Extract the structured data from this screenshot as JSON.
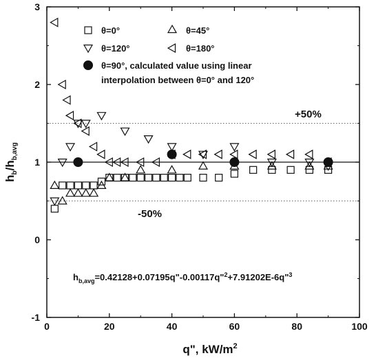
{
  "chart_data": {
    "type": "scatter",
    "xlabel": "q\", kW/m",
    "xlabel_sup": "2",
    "ylabel_main": "h",
    "ylabel_sub1": "b",
    "ylabel_mid": "/h",
    "ylabel_sub2": "b,avg",
    "xlim": [
      0,
      100
    ],
    "ylim": [
      -1,
      3
    ],
    "xticks": [
      "0",
      "20",
      "40",
      "60",
      "80",
      "100"
    ],
    "yticks": [
      "-1",
      "0",
      "1",
      "2",
      "3"
    ],
    "reference_lines": [
      {
        "y": 1.0,
        "style": "solid"
      },
      {
        "y": 1.5,
        "style": "dotted",
        "label": "+50%"
      },
      {
        "y": 0.5,
        "style": "dotted",
        "label": "-50%"
      }
    ],
    "legend_position": "top",
    "series": [
      {
        "name": "θ=0°",
        "marker": "square",
        "points": [
          [
            2.5,
            0.4
          ],
          [
            5,
            0.7
          ],
          [
            7.5,
            0.7
          ],
          [
            10,
            0.7
          ],
          [
            12.5,
            0.7
          ],
          [
            15,
            0.7
          ],
          [
            17.5,
            0.75
          ],
          [
            20,
            0.8
          ],
          [
            22.5,
            0.8
          ],
          [
            25,
            0.8
          ],
          [
            27.5,
            0.8
          ],
          [
            30,
            0.8
          ],
          [
            32.5,
            0.8
          ],
          [
            35,
            0.8
          ],
          [
            37.5,
            0.8
          ],
          [
            40,
            0.8
          ],
          [
            42.5,
            0.8
          ],
          [
            45,
            0.8
          ],
          [
            50,
            0.8
          ],
          [
            55,
            0.8
          ],
          [
            60,
            0.85
          ],
          [
            66,
            0.9
          ],
          [
            72,
            0.9
          ],
          [
            78,
            0.9
          ],
          [
            84,
            0.9
          ],
          [
            90,
            0.9
          ]
        ]
      },
      {
        "name": "θ=45°",
        "marker": "triangle-up",
        "points": [
          [
            2.5,
            0.7
          ],
          [
            5,
            0.5
          ],
          [
            7.5,
            0.6
          ],
          [
            10,
            0.6
          ],
          [
            12.5,
            0.6
          ],
          [
            15,
            0.6
          ],
          [
            17.5,
            0.7
          ],
          [
            20,
            0.8
          ],
          [
            25,
            0.8
          ],
          [
            30,
            0.9
          ],
          [
            40,
            0.9
          ],
          [
            50,
            0.95
          ],
          [
            60,
            0.95
          ],
          [
            72,
            0.95
          ],
          [
            84,
            0.95
          ],
          [
            90,
            0.95
          ]
        ]
      },
      {
        "name": "θ=120°",
        "marker": "triangle-down",
        "points": [
          [
            2.5,
            0.5
          ],
          [
            5,
            1.0
          ],
          [
            7.5,
            1.2
          ],
          [
            10,
            1.5
          ],
          [
            12.5,
            1.5
          ],
          [
            17.5,
            1.6
          ],
          [
            25,
            1.4
          ],
          [
            32.5,
            1.3
          ],
          [
            40,
            1.2
          ],
          [
            50,
            1.1
          ],
          [
            60,
            1.2
          ],
          [
            72,
            1.0
          ],
          [
            84,
            1.0
          ],
          [
            90,
            0.95
          ]
        ]
      },
      {
        "name": "θ=180°",
        "marker": "triangle-left",
        "points": [
          [
            2.5,
            2.8
          ],
          [
            5,
            2.0
          ],
          [
            6.5,
            1.8
          ],
          [
            7.5,
            1.6
          ],
          [
            10,
            1.5
          ],
          [
            12.5,
            1.4
          ],
          [
            15,
            1.2
          ],
          [
            17.5,
            1.1
          ],
          [
            20,
            1.0
          ],
          [
            22.5,
            1.0
          ],
          [
            25,
            1.0
          ],
          [
            30,
            1.0
          ],
          [
            35,
            1.0
          ],
          [
            40,
            1.1
          ],
          [
            45,
            1.1
          ],
          [
            50,
            1.1
          ],
          [
            55,
            1.1
          ],
          [
            60,
            1.1
          ],
          [
            66,
            1.1
          ],
          [
            72,
            1.1
          ],
          [
            78,
            1.1
          ],
          [
            84,
            1.1
          ],
          [
            90,
            1.0
          ]
        ]
      },
      {
        "name": "θ=90°, calculated value using linear interpolation between θ=0° and 120°",
        "marker": "circle-filled",
        "points": [
          [
            10,
            1.0
          ],
          [
            40,
            1.1
          ],
          [
            60,
            1.0
          ],
          [
            90,
            1.0
          ]
        ]
      }
    ]
  },
  "legend": {
    "l0": "θ=0°",
    "l45": "θ=45°",
    "l120": "θ=120°",
    "l180": "θ=180°",
    "l90_line1": "θ=90°, calculated value using linear",
    "l90_line2": "interpolation between θ=0° and 120°"
  },
  "annotations": {
    "plus50": "+50%",
    "minus50": "-50%",
    "formula_lhs": "h",
    "formula_sub": "b,avg",
    "formula_p1": "=0.42128+0.07195q\"-0.00117q\"",
    "formula_sup1": "2",
    "formula_p2": "+7.91202E-6q\"",
    "formula_sup2": "3"
  }
}
